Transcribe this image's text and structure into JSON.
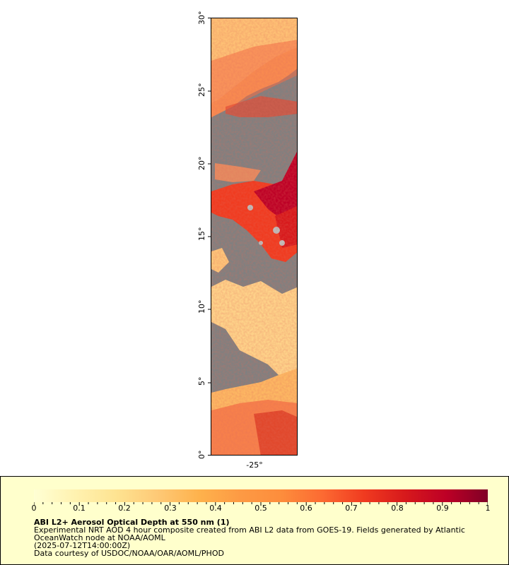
{
  "map": {
    "lat_labels": [
      "0°",
      "5°",
      "10°",
      "15°",
      "20°",
      "25°",
      "30°"
    ],
    "lon_labels": [
      "-25°"
    ],
    "no_data_color": "#808080"
  },
  "legend": {
    "colorbar_ticks": [
      "0",
      "0.1",
      "0.2",
      "0.3",
      "0.4",
      "0.5",
      "0.6",
      "0.7",
      "0.8",
      "0.9",
      "1"
    ],
    "colorbar_colors": [
      "#ffffd4",
      "#fff2b0",
      "#fee391",
      "#fec976",
      "#feb24c",
      "#fd9a44",
      "#fd8d3c",
      "#fc6a32",
      "#f03b20",
      "#d7191c",
      "#bd0026",
      "#800026"
    ],
    "title": "ABI L2+ Aerosol Optical Depth at 550 nm (1)",
    "description": "Experimental NRT AOD 4 hour composite created from ABI L2 data from GOES-19. Fields generated by Atlantic",
    "description2": "OceanWatch node at NOAA/AOML",
    "time": "(2025-07-12T14:00:00Z)",
    "credit": "Data courtesy of USDOC/NOAA/OAR/AOML/PHOD"
  }
}
